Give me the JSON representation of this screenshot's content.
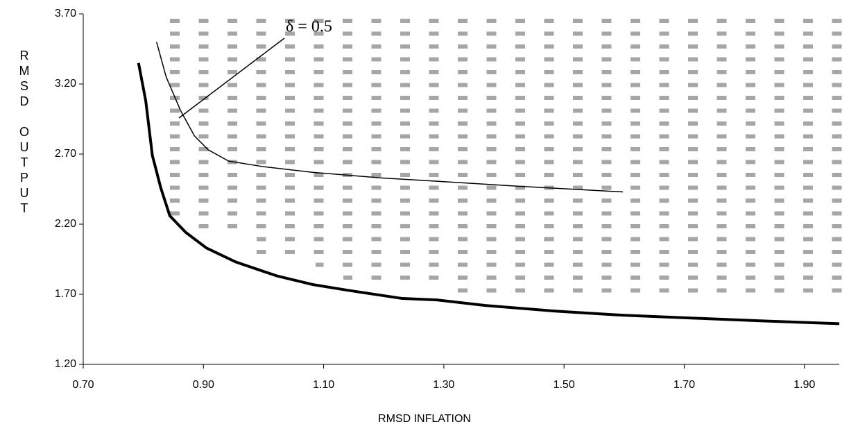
{
  "chart_data": {
    "type": "line",
    "x_label": "RMSD INFLATION",
    "y_label": "RMSD OUTPUT",
    "annotation": "δ = 0.5",
    "xlim": [
      0.7,
      1.958
    ],
    "ylim": [
      1.2,
      3.7
    ],
    "xticks": [
      {
        "value": 0.7,
        "label": "0.70"
      },
      {
        "value": 0.9,
        "label": "0.90"
      },
      {
        "value": 1.1,
        "label": "1.10"
      },
      {
        "value": 1.3,
        "label": "1.30"
      },
      {
        "value": 1.5,
        "label": "1.50"
      },
      {
        "value": 1.7,
        "label": "1.70"
      },
      {
        "value": 1.9,
        "label": "1.90"
      }
    ],
    "yticks": [
      {
        "value": 1.2,
        "label": "1.20"
      },
      {
        "value": 1.7,
        "label": "1.70"
      },
      {
        "value": 2.2,
        "label": "2.20"
      },
      {
        "value": 2.7,
        "label": "2.70"
      },
      {
        "value": 3.2,
        "label": "3.20"
      },
      {
        "value": 3.7,
        "label": "3.70"
      }
    ],
    "series": [
      {
        "color": "#000000",
        "width": 4,
        "x": [
          0.792,
          0.804,
          0.815,
          0.829,
          0.844,
          0.871,
          0.905,
          0.954,
          1.023,
          1.081,
          1.138,
          1.231,
          1.288,
          1.369,
          1.485,
          1.6,
          1.715,
          1.83,
          1.958
        ],
        "values": [
          3.35,
          3.08,
          2.69,
          2.46,
          2.26,
          2.14,
          2.03,
          1.93,
          1.83,
          1.77,
          1.73,
          1.67,
          1.66,
          1.62,
          1.58,
          1.55,
          1.53,
          1.51,
          1.49
        ]
      },
      {
        "color": "#000000",
        "width": 1.5,
        "x": [
          0.822,
          0.838,
          0.862,
          0.885,
          0.908,
          0.942,
          1.0,
          1.081,
          1.196,
          1.312,
          1.427,
          1.598
        ],
        "values": [
          3.5,
          3.25,
          3.01,
          2.83,
          2.73,
          2.65,
          2.61,
          2.57,
          2.53,
          2.5,
          2.47,
          2.43
        ]
      }
    ]
  }
}
